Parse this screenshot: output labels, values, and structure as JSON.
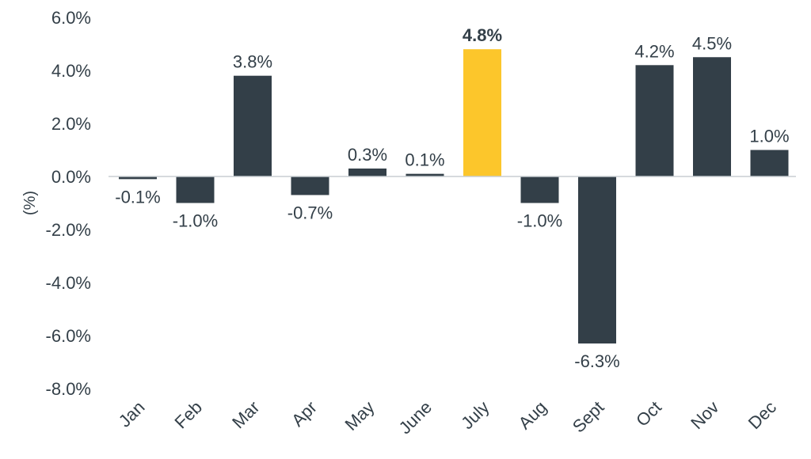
{
  "chart_data": {
    "type": "bar",
    "title": "",
    "xlabel": "",
    "ylabel": "(%)",
    "categories": [
      "Jan",
      "Feb",
      "Mar",
      "Apr",
      "May",
      "June",
      "July",
      "Aug",
      "Sept",
      "Oct",
      "Nov",
      "Dec"
    ],
    "values": [
      -0.1,
      -1.0,
      3.8,
      -0.7,
      0.3,
      0.1,
      4.8,
      -1.0,
      -6.3,
      4.2,
      4.5,
      1.0
    ],
    "data_labels": [
      "-0.1%",
      "-1.0%",
      "3.8%",
      "-0.7%",
      "0.3%",
      "0.1%",
      "4.8%",
      "-1.0%",
      "-6.3%",
      "4.2%",
      "4.5%",
      "1.0%"
    ],
    "highlight_index": 6,
    "ylim": [
      -8,
      6
    ],
    "yticks": [
      6,
      4,
      2,
      0,
      -2,
      -4,
      -6,
      -8
    ],
    "ytick_labels": [
      "6.0%",
      "4.0%",
      "2.0%",
      "0.0%",
      "-2.0%",
      "-4.0%",
      "-6.0%",
      "-8.0%"
    ],
    "grid": false,
    "legend": "none",
    "colors": {
      "bar": "#333f48",
      "highlight": "#fcc62b",
      "text": "#333f48",
      "axis_line": "#c8cdd2"
    }
  }
}
